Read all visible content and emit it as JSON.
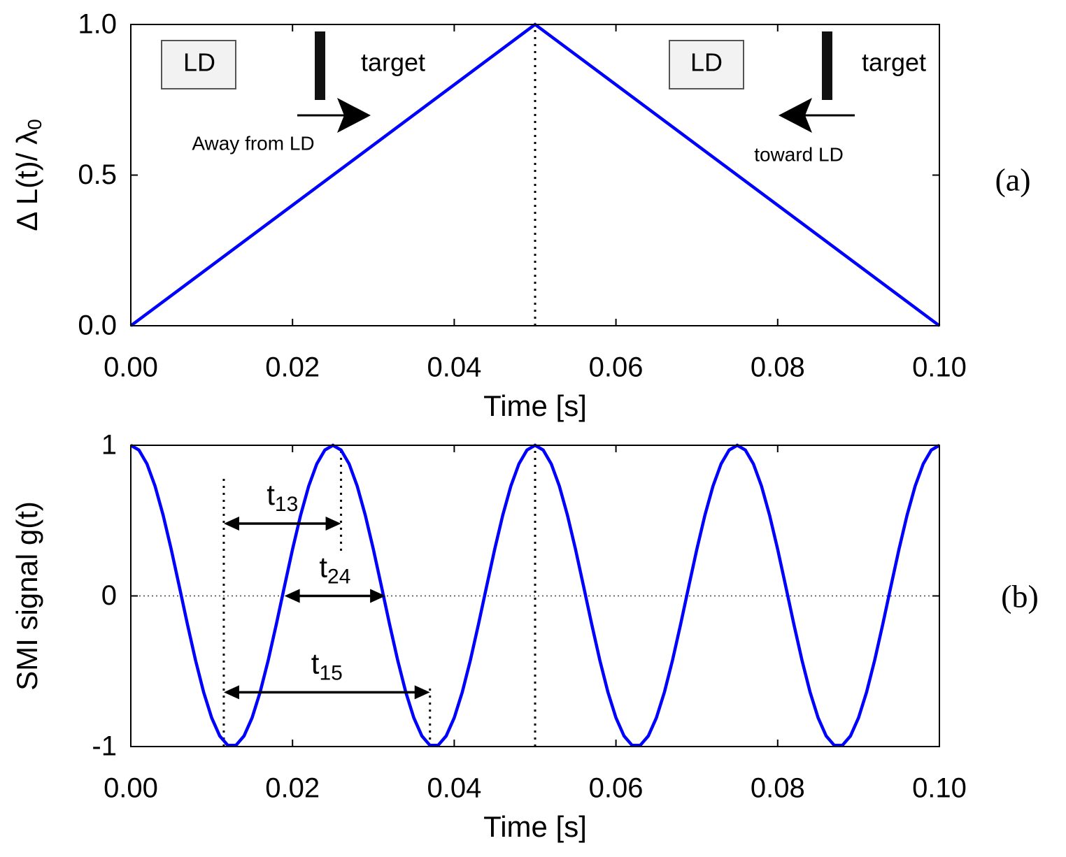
{
  "chart_data": [
    {
      "type": "line",
      "xlabel": "Time [s]",
      "ylabel": "Δ L(t)/ λ",
      "ylabel_subscript": "0",
      "x": [
        0,
        0.05,
        0.1
      ],
      "series": [
        {
          "color": "#0000ff",
          "values": [
            0,
            1,
            0
          ]
        }
      ],
      "xlim": [
        0,
        0.1
      ],
      "ylim": [
        0,
        1
      ],
      "xticks": [
        {
          "value": 0,
          "label": "0.00"
        },
        0.02,
        0.04,
        0.06,
        0.08,
        {
          "value": 0.1,
          "label": "0.10"
        }
      ],
      "yticks": [
        {
          "value": 0,
          "label": "0.0"
        },
        0.5,
        {
          "value": 1,
          "label": "1.0"
        }
      ],
      "guides": [
        {
          "x": 0.05,
          "y": [
            0,
            1
          ]
        }
      ],
      "annotations": [
        "LD",
        "target",
        "Away from LD",
        "LD",
        "target",
        "toward LD"
      ],
      "panel_label": "(a)"
    },
    {
      "type": "line",
      "xlabel": "Time [s]",
      "ylabel": "SMI signal g(t)",
      "x": [
        0,
        0.001,
        0.002,
        0.003,
        0.004,
        0.005,
        0.006,
        0.007,
        0.008,
        0.009,
        0.01,
        0.011,
        0.012,
        0.013,
        0.014,
        0.015,
        0.016,
        0.017,
        0.018,
        0.019,
        0.02,
        0.021,
        0.022,
        0.023,
        0.024,
        0.025,
        0.026,
        0.027,
        0.028,
        0.029,
        0.03,
        0.031,
        0.032,
        0.033,
        0.034,
        0.035,
        0.036,
        0.037,
        0.038,
        0.039,
        0.04,
        0.041,
        0.042,
        0.043,
        0.044,
        0.045,
        0.046,
        0.047,
        0.048,
        0.049,
        0.05,
        0.051,
        0.052,
        0.053,
        0.054,
        0.055,
        0.056,
        0.057,
        0.058,
        0.059,
        0.06,
        0.061,
        0.062,
        0.063,
        0.064,
        0.065,
        0.066,
        0.067,
        0.068,
        0.069,
        0.07,
        0.071,
        0.072,
        0.073,
        0.074,
        0.075,
        0.076,
        0.077,
        0.078,
        0.079,
        0.08,
        0.081,
        0.082,
        0.083,
        0.084,
        0.085,
        0.086,
        0.087,
        0.088,
        0.089,
        0.09,
        0.091,
        0.092,
        0.093,
        0.094,
        0.095,
        0.096,
        0.097,
        0.098,
        0.099,
        0.1
      ],
      "series": [
        {
          "color": "#0000ff",
          "values": [
            1,
            0.9686,
            0.8763,
            0.729,
            0.5358,
            0.309,
            0.0628,
            -0.1874,
            -0.4258,
            -0.6374,
            -0.809,
            -0.9298,
            -0.9921,
            -0.9921,
            -0.9298,
            -0.809,
            -0.6374,
            -0.4258,
            -0.1874,
            0.0628,
            0.309,
            0.5358,
            0.729,
            0.8763,
            0.9686,
            1,
            0.9686,
            0.8763,
            0.729,
            0.5358,
            0.309,
            0.0628,
            -0.1874,
            -0.4258,
            -0.6374,
            -0.809,
            -0.9298,
            -0.9921,
            -0.9921,
            -0.9298,
            -0.809,
            -0.6374,
            -0.4258,
            -0.1874,
            0.0628,
            0.309,
            0.5358,
            0.729,
            0.8763,
            0.9686,
            1,
            0.9686,
            0.8763,
            0.729,
            0.5358,
            0.309,
            0.0628,
            -0.1874,
            -0.4258,
            -0.6374,
            -0.809,
            -0.9298,
            -0.9921,
            -0.9921,
            -0.9298,
            -0.809,
            -0.6374,
            -0.4258,
            -0.1874,
            0.0628,
            0.309,
            0.5358,
            0.729,
            0.8763,
            0.9686,
            1,
            0.9686,
            0.8763,
            0.729,
            0.5358,
            0.309,
            0.0628,
            -0.1874,
            -0.4258,
            -0.6374,
            -0.809,
            -0.9298,
            -0.9921,
            -0.9921,
            -0.9298,
            -0.809,
            -0.6374,
            -0.4258,
            -0.1874,
            0.0628,
            0.309,
            0.5358,
            0.729,
            0.8763,
            0.9686,
            1
          ]
        }
      ],
      "xlim": [
        0,
        0.1
      ],
      "ylim": [
        -1,
        1
      ],
      "xticks": [
        {
          "value": 0,
          "label": "0.00"
        },
        0.02,
        0.04,
        0.06,
        0.08,
        {
          "value": 0.1,
          "label": "0.10"
        }
      ],
      "yticks": [
        -1,
        0,
        1
      ],
      "hlines": [
        0
      ],
      "guides": [
        {
          "x": 0.0115,
          "y": [
            -1,
            0.8
          ]
        },
        {
          "x": 0.026,
          "y": [
            0.3,
            1
          ]
        },
        {
          "x": 0.05,
          "y": [
            -1,
            1
          ]
        },
        {
          "x": 0.037,
          "y": [
            -1,
            -0.6
          ]
        }
      ],
      "intervals": [
        {
          "label": "t",
          "sub": "13",
          "x": [
            0.0115,
            0.026
          ],
          "y": 0.48
        },
        {
          "label": "t",
          "sub": "24",
          "x": [
            0.019,
            0.0315
          ],
          "y": 0
        },
        {
          "label": "t",
          "sub": "15",
          "x": [
            0.0115,
            0.037
          ],
          "y": -0.64
        }
      ],
      "panel_label": "(b)"
    }
  ]
}
